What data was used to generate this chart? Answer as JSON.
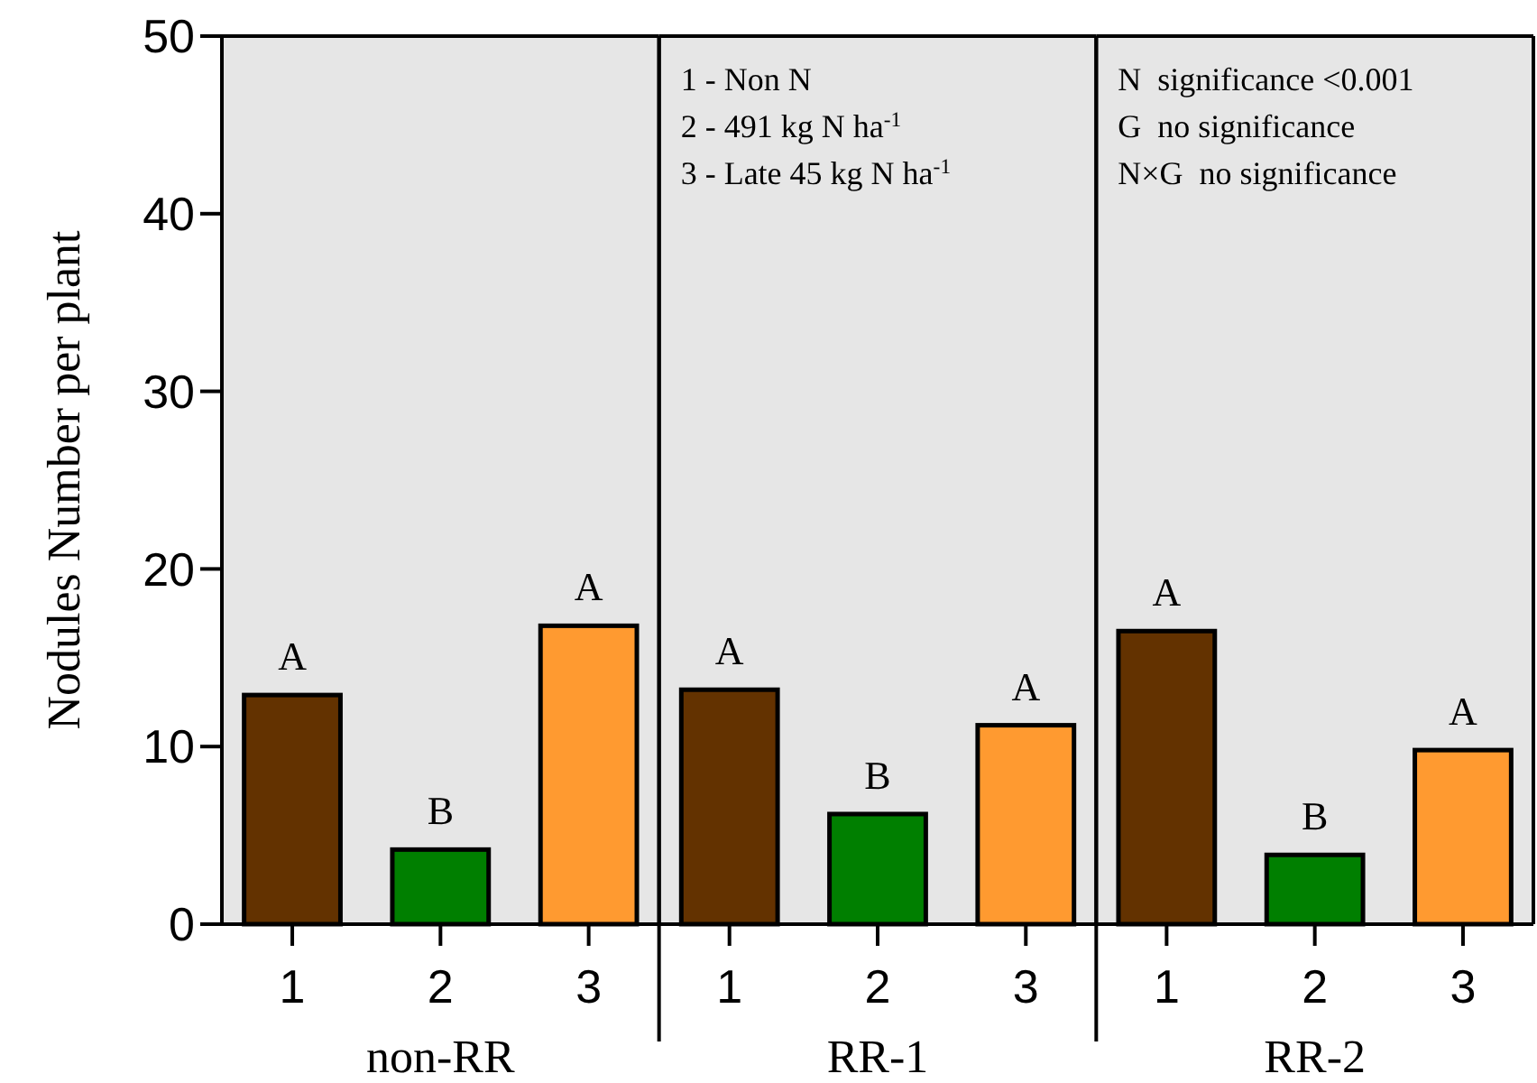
{
  "chart_data": [
    {
      "type": "bar",
      "ylabel": "Nodules Number per plant",
      "xlabel": "non-RR",
      "categories": [
        "1",
        "2",
        "3"
      ],
      "values": [
        12.9,
        4.2,
        16.8
      ],
      "colors": [
        "#633200",
        "#007f00",
        "#ff9a30"
      ],
      "value_labels": [
        "A",
        "B",
        "A"
      ],
      "ylim": [
        0,
        50
      ],
      "yticks": [
        0,
        10,
        20,
        30,
        40,
        50
      ],
      "grid": false
    },
    {
      "type": "bar",
      "xlabel": "RR-1",
      "categories": [
        "1",
        "2",
        "3"
      ],
      "values": [
        13.2,
        6.2,
        11.2
      ],
      "colors": [
        "#633200",
        "#007f00",
        "#ff9a30"
      ],
      "value_labels": [
        "A",
        "B",
        "A"
      ],
      "ylim": [
        0,
        50
      ],
      "yticks": [
        0,
        10,
        20,
        30,
        40,
        50
      ],
      "tick_labels": "x",
      "grid": false,
      "annotations": [
        "1 - Non N",
        "2 - 491 kg N ha$^{-1}$",
        "3 - Late 45 kg N ha$^{-1}$"
      ]
    },
    {
      "type": "bar",
      "xlabel": "RR-2",
      "categories": [
        "1",
        "2",
        "3"
      ],
      "values": [
        16.5,
        3.9,
        9.8
      ],
      "colors": [
        "#633200",
        "#007f00",
        "#ff9a30"
      ],
      "value_labels": [
        "A",
        "B",
        "A"
      ],
      "ylim": [
        0,
        50
      ],
      "yticks": [
        0,
        10,
        20,
        30,
        40,
        50
      ],
      "tick_labels": "x",
      "grid": false,
      "annotations": [
        "N  significance <0.001",
        "G  no significance",
        "N×G  no significance"
      ]
    }
  ]
}
